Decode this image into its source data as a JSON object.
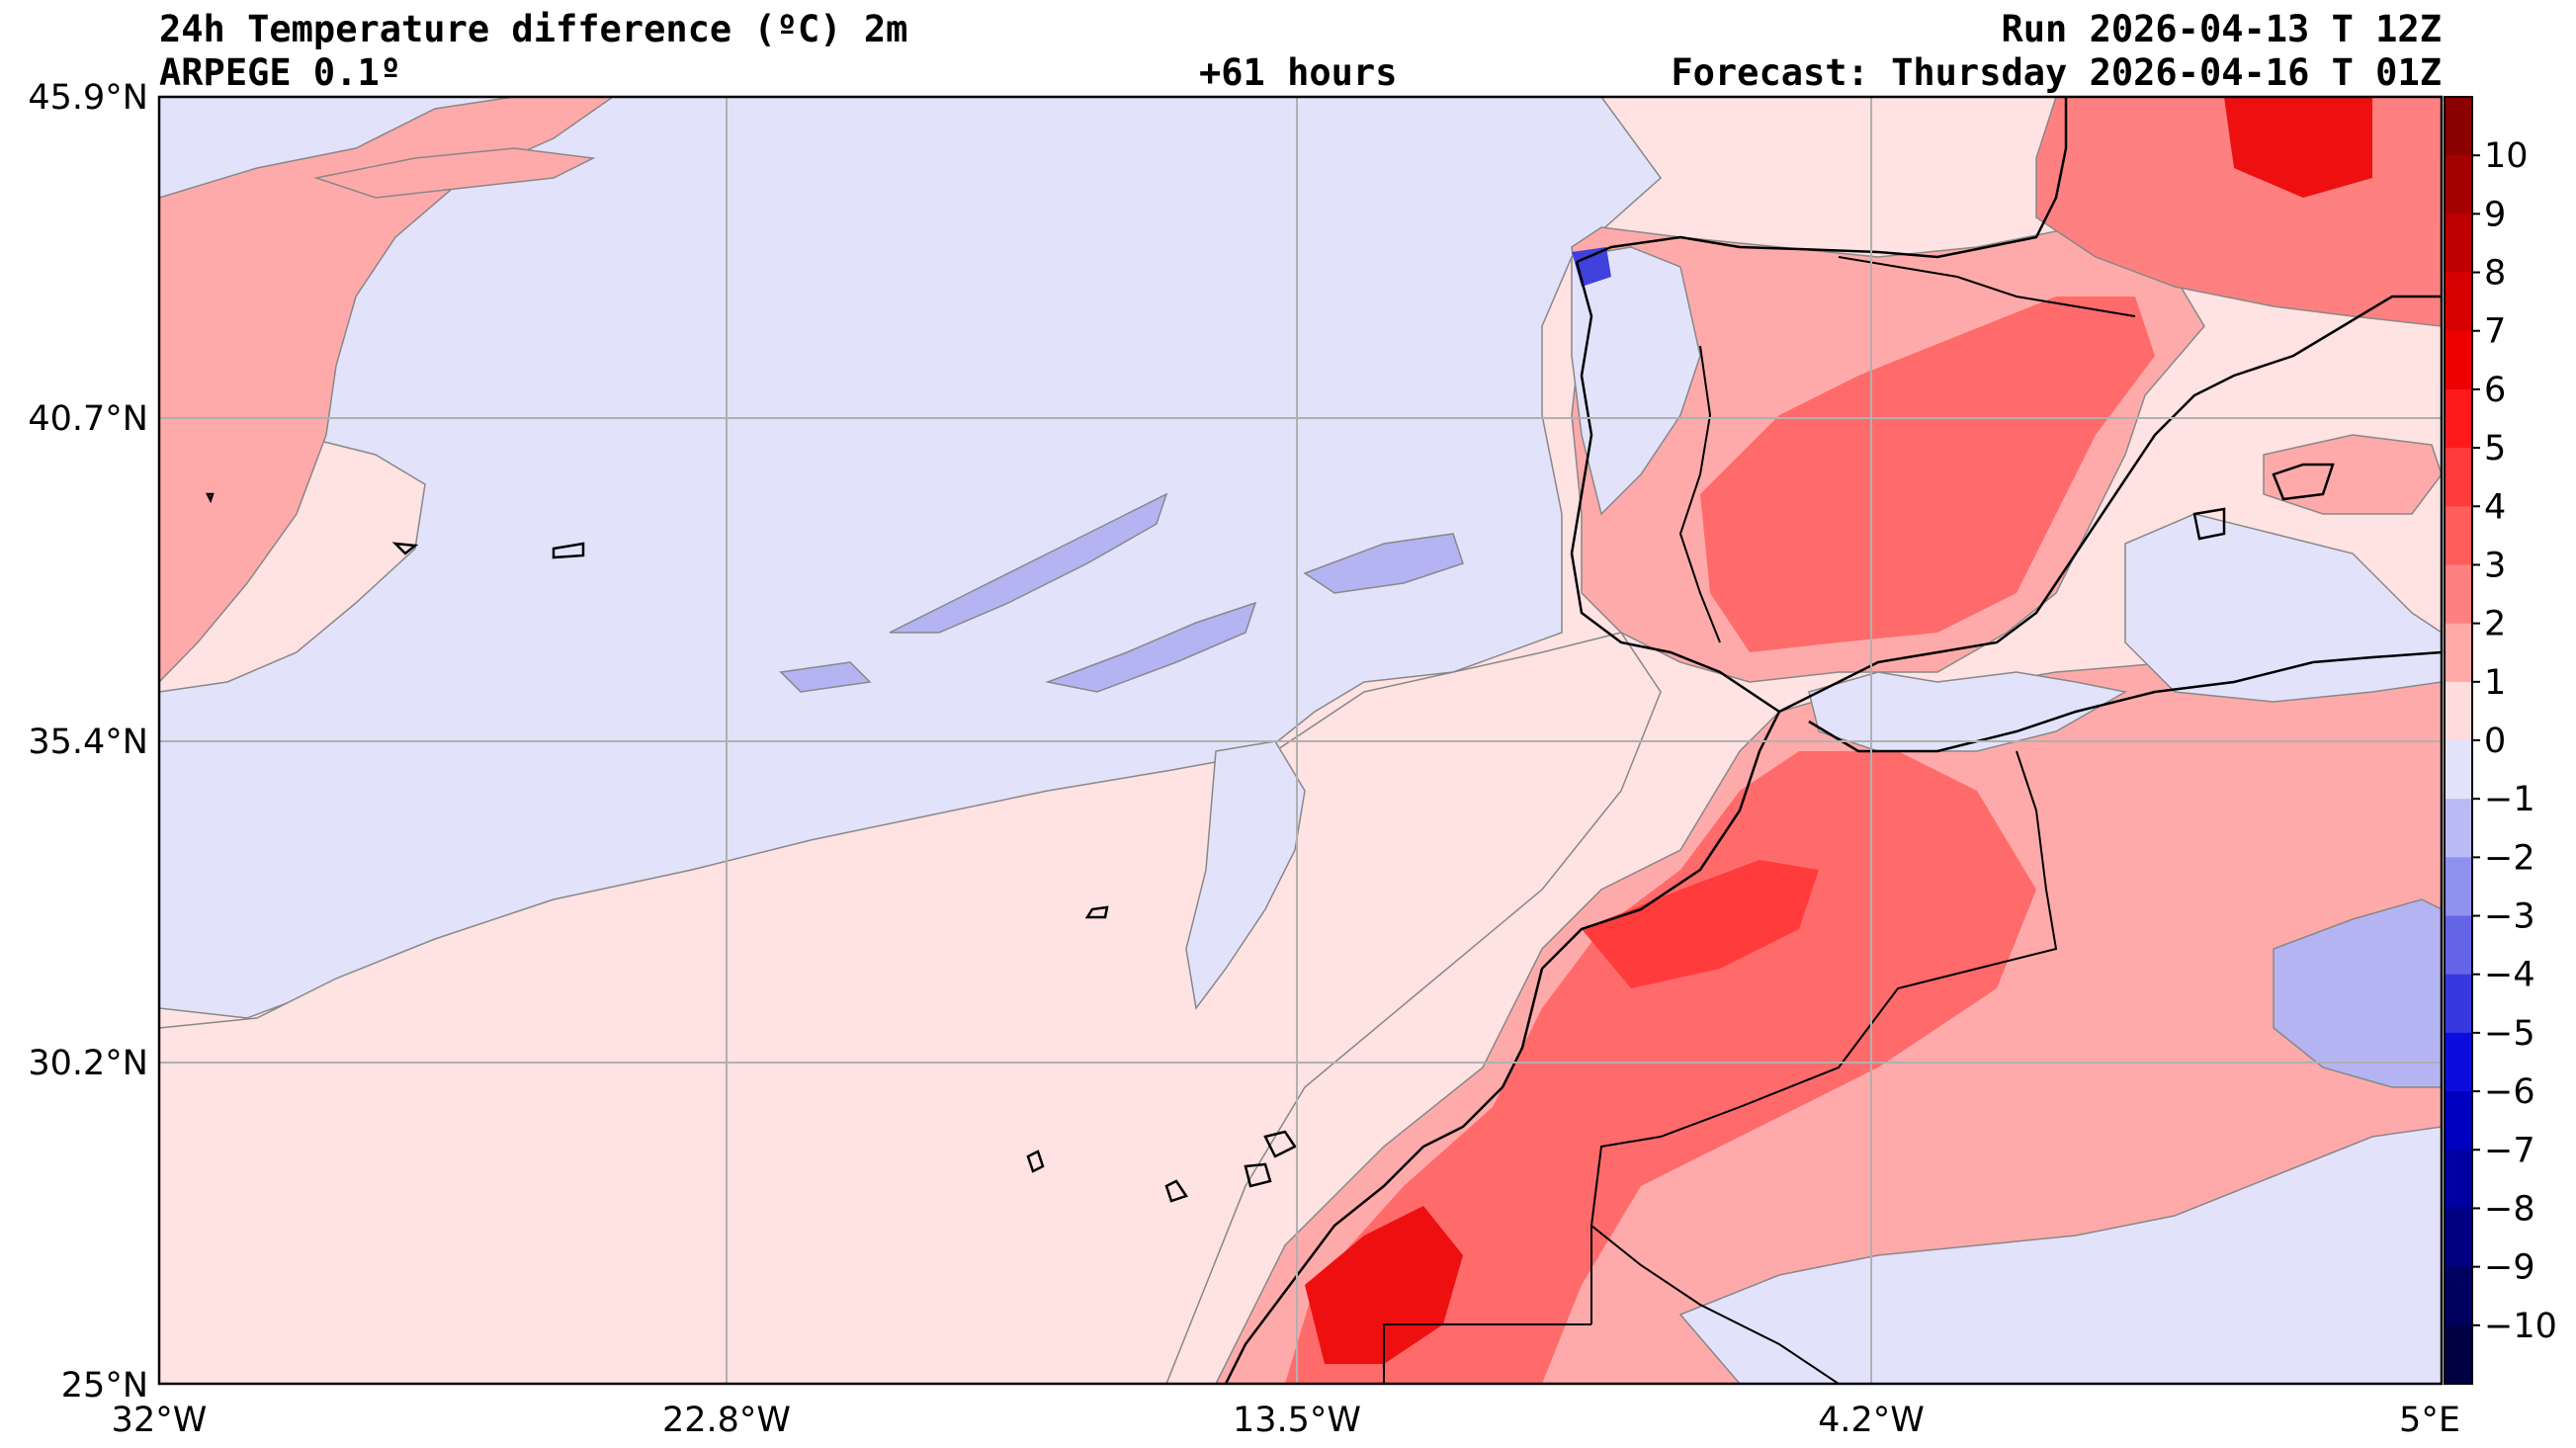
{
  "header": {
    "title": "24h Temperature difference (ºC) 2m",
    "model": "ARPEGE 0.1º",
    "lead": "+61 hours",
    "run": "Run 2026-04-13 T 12Z",
    "forecast": "Forecast: Thursday 2026-04-16 T 01Z"
  },
  "axes": {
    "lat_labels": [
      "45.9°N",
      "40.7°N",
      "35.4°N",
      "30.2°N",
      "25°N"
    ],
    "lon_labels": [
      "32°W",
      "22.8°W",
      "13.5°W",
      "4.2°W",
      "5°E"
    ]
  },
  "colorbar": {
    "min": -11,
    "max": 11,
    "tick_labels": [
      "10",
      "9",
      "8",
      "7",
      "6",
      "5",
      "4",
      "3",
      "2",
      "1",
      "0",
      "−1",
      "−2",
      "−3",
      "−4",
      "−5",
      "−6",
      "−7",
      "−8",
      "−9",
      "−10"
    ],
    "colors": [
      "#8b0000",
      "#a50000",
      "#be0000",
      "#d60000",
      "#ee0000",
      "#ff1a1a",
      "#ff3b3b",
      "#ff5c5c",
      "#ff8080",
      "#ffa8a8",
      "#ffdcdc",
      "#e2e2fb",
      "#babaf5",
      "#9090ee",
      "#6464e6",
      "#3838e0",
      "#0c0cdc",
      "#0000c0",
      "#0000a0",
      "#000080",
      "#000060",
      "#000045"
    ]
  },
  "colors": {
    "sea": "#ffe2e2",
    "cool": "#e2e2fb",
    "cool2": "#b4b4f3",
    "warm": "#ffaaaa",
    "warm2": "#ff6b6b",
    "hot": "#ee1010",
    "frame": "#000000",
    "grid": "#b0b0b0"
  }
}
